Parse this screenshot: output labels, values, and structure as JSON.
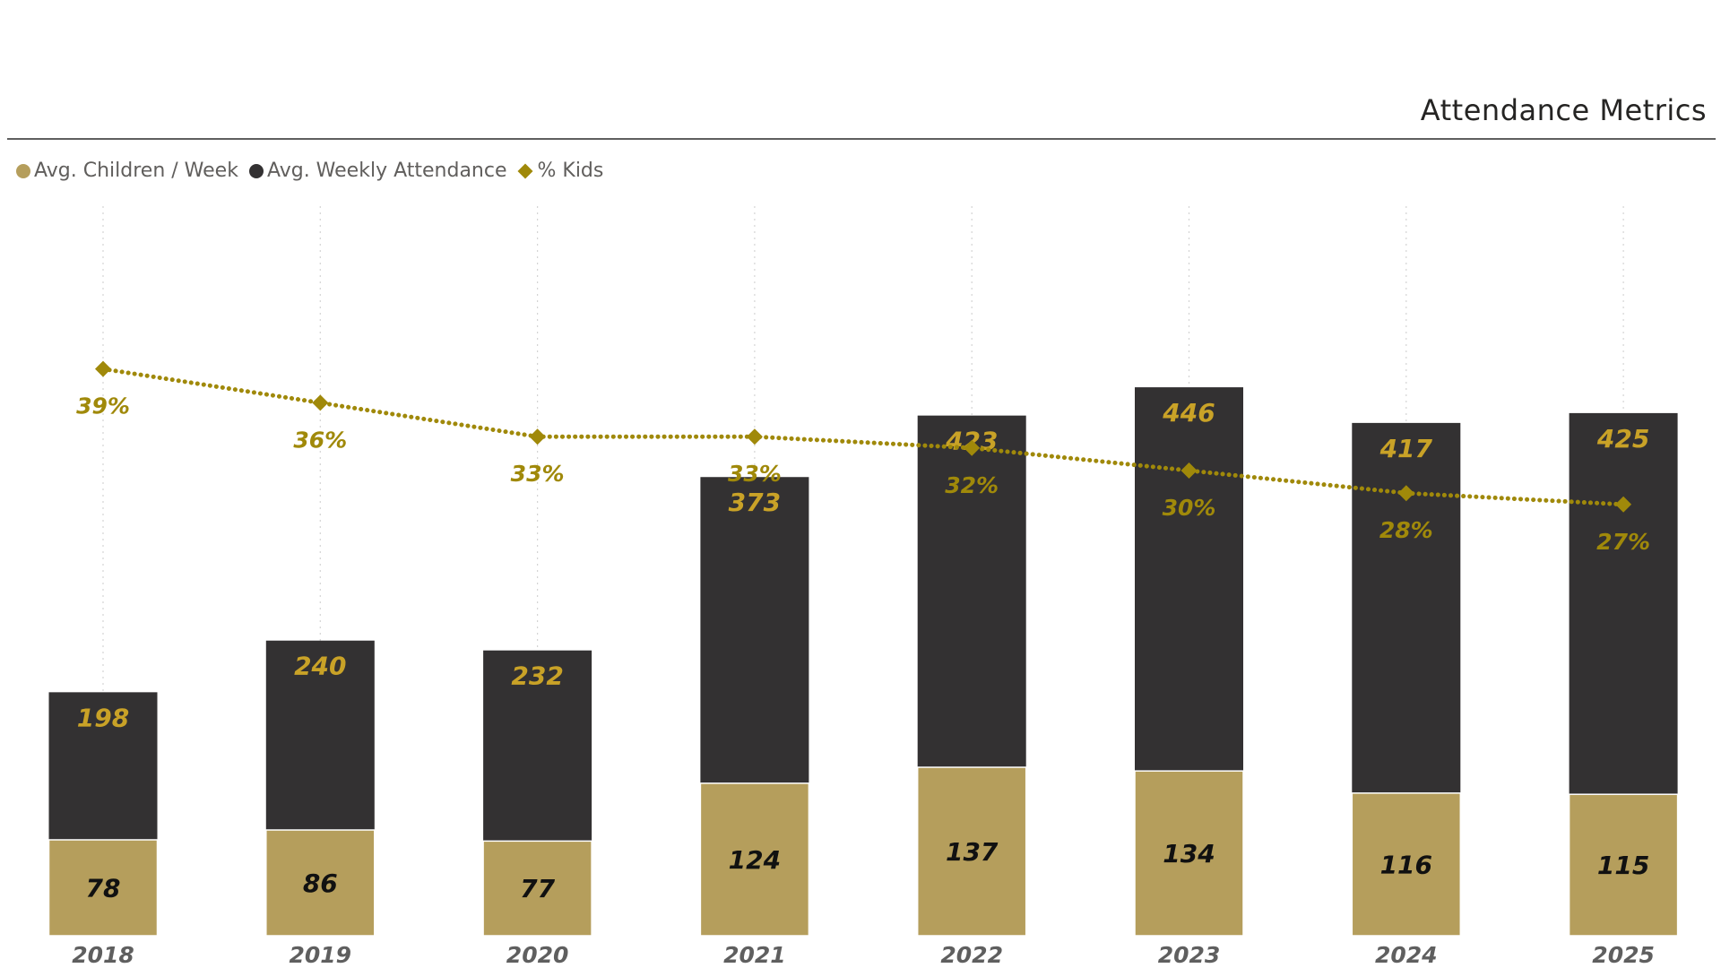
{
  "title": "Attendance Metrics",
  "colors": {
    "children": "#b59e5c",
    "attendance": "#333132",
    "kids_line": "#a0890a",
    "total_label": "#c9a227",
    "children_label": "#111111",
    "axis_text": "#5f5f5f"
  },
  "legend": [
    {
      "label": "Avg. Children / Week",
      "shape": "circle",
      "color": "#b59e5c"
    },
    {
      "label": "Avg. Weekly Attendance",
      "shape": "circle",
      "color": "#333132"
    },
    {
      "label": "% Kids",
      "shape": "diamond",
      "color": "#a0890a"
    }
  ],
  "chart_data": {
    "type": "bar",
    "stacked": true,
    "title": "Attendance Metrics",
    "categories": [
      "2018",
      "2019",
      "2020",
      "2021",
      "2022",
      "2023",
      "2024",
      "2025"
    ],
    "series": [
      {
        "name": "Avg. Children / Week",
        "type": "bar",
        "values": [
          78,
          86,
          77,
          124,
          137,
          134,
          116,
          115
        ]
      },
      {
        "name": "Avg. Weekly Attendance",
        "type": "bar",
        "values": [
          198,
          240,
          232,
          373,
          423,
          446,
          417,
          425
        ]
      },
      {
        "name": "% Kids",
        "type": "line",
        "values": [
          39,
          36,
          33,
          33,
          32,
          30,
          28,
          27
        ],
        "labels": [
          "39%",
          "36%",
          "33%",
          "33%",
          "32%",
          "30%",
          "28%",
          "27%"
        ]
      }
    ],
    "ylim": [
      0,
      600
    ],
    "y2lim": [
      0,
      50
    ],
    "xlabel": "",
    "ylabel": "",
    "legend_position": "top-left"
  }
}
